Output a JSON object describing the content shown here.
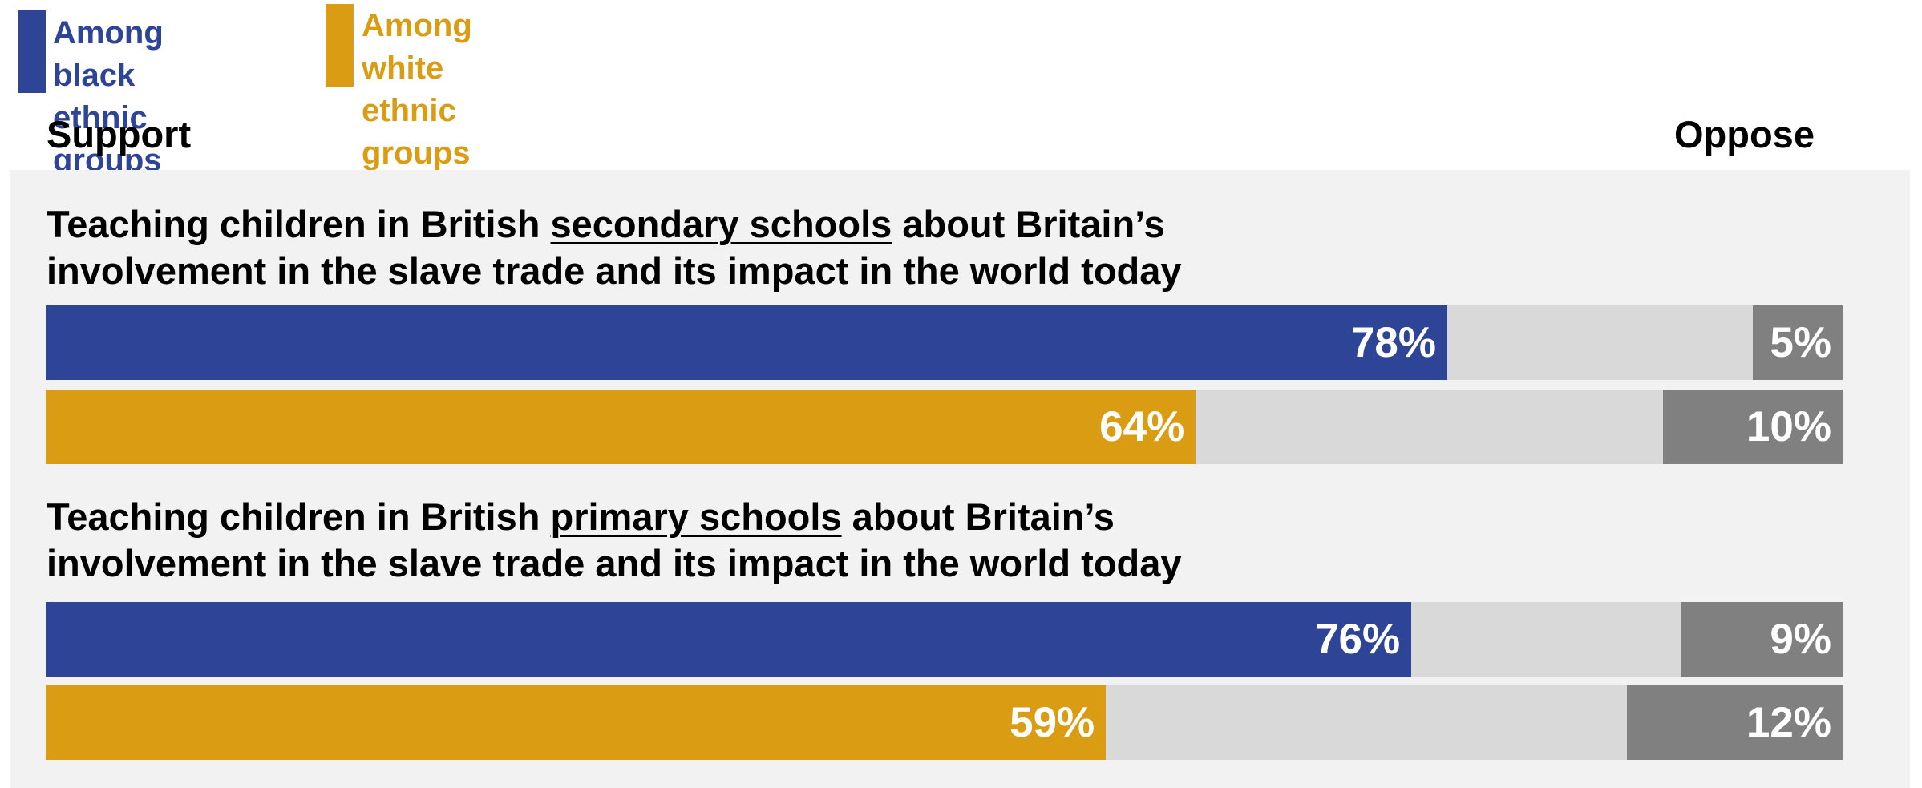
{
  "legend": [
    {
      "label": "Among black\nethnic groups",
      "color": "#2e4597"
    },
    {
      "label": "Among white\nethnic groups",
      "color": "#d99c12"
    }
  ],
  "axis": {
    "left": "Support",
    "right": "Oppose"
  },
  "colors": {
    "neutral": "#d9d9d9",
    "oppose": "#808080",
    "panel": "#f2f2f2"
  },
  "questions": [
    {
      "prefix": "Teaching children in British ",
      "emphasis": "secondary schools",
      "suffix": " about Britain’s\ninvolvement in the slave trade and its impact in the world today"
    },
    {
      "prefix": "Teaching children in British ",
      "emphasis": "primary schools",
      "suffix": " about Britain’s\ninvolvement in the slave trade and its impact in the world today"
    }
  ],
  "chart_data": {
    "type": "bar",
    "orientation": "horizontal",
    "stacked": true,
    "categories": [
      "Teaching children in British secondary schools about Britain’s involvement in the slave trade and its impact in the world today",
      "Teaching children in British primary schools about Britain’s involvement in the slave trade and its impact in the world today"
    ],
    "series": [
      {
        "name": "Among black ethnic groups",
        "support": [
          78,
          76
        ],
        "oppose": [
          5,
          9
        ],
        "labels_support": [
          "78%",
          "76%"
        ],
        "labels_oppose": [
          "5%",
          "9%"
        ]
      },
      {
        "name": "Among white ethnic groups",
        "support": [
          64,
          59
        ],
        "oppose": [
          10,
          12
        ],
        "labels_support": [
          "64%",
          "59%"
        ],
        "labels_oppose": [
          "10%",
          "12%"
        ]
      }
    ],
    "xlim": [
      0,
      100
    ]
  }
}
